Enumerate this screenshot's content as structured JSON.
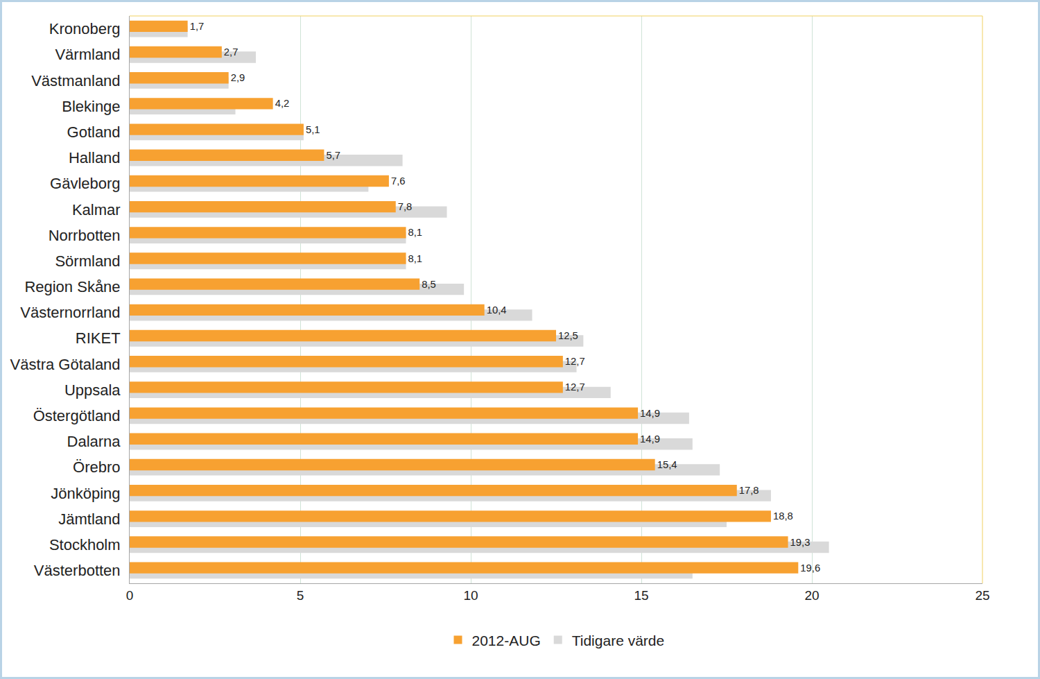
{
  "chart_data": {
    "type": "bar",
    "orientation": "horizontal",
    "categories": [
      "Kronoberg",
      "Värmland",
      "Västmanland",
      "Blekinge",
      "Gotland",
      "Halland",
      "Gävleborg",
      "Kalmar",
      "Norrbotten",
      "Sörmland",
      "Region Skåne",
      "Västernorrland",
      "RIKET",
      "Västra Götaland",
      "Uppsala",
      "Östergötland",
      "Dalarna",
      "Örebro",
      "Jönköping",
      "Jämtland",
      "Stockholm",
      "Västerbotten"
    ],
    "series": [
      {
        "name": "2012-AUG",
        "color": "#F7A131",
        "values": [
          1.7,
          2.7,
          2.9,
          4.2,
          5.1,
          5.7,
          7.6,
          7.8,
          8.1,
          8.1,
          8.5,
          10.4,
          12.5,
          12.7,
          12.7,
          14.9,
          14.9,
          15.4,
          17.8,
          18.8,
          19.3,
          19.6
        ],
        "value_labels": [
          "1,7",
          "2,7",
          "2,9",
          "4,2",
          "5,1",
          "5,7",
          "7,6",
          "7,8",
          "8,1",
          "8,1",
          "8,5",
          "10,4",
          "12,5",
          "12,7",
          "12,7",
          "14,9",
          "14,9",
          "15,4",
          "17,8",
          "18,8",
          "19,3",
          "19,6"
        ],
        "data_labels": true
      },
      {
        "name": "Tidigare värde",
        "color": "#D9D9D9",
        "values": [
          1.7,
          3.7,
          2.9,
          3.1,
          5.1,
          8.0,
          7.0,
          9.3,
          8.1,
          8.1,
          9.8,
          11.8,
          13.3,
          13.1,
          14.1,
          16.4,
          16.5,
          17.3,
          18.8,
          17.5,
          20.5,
          16.5
        ]
      }
    ],
    "xlim": [
      0,
      25
    ],
    "xticks": [
      0,
      5,
      10,
      15,
      20,
      25
    ],
    "grid": true,
    "legend": "bottom"
  }
}
